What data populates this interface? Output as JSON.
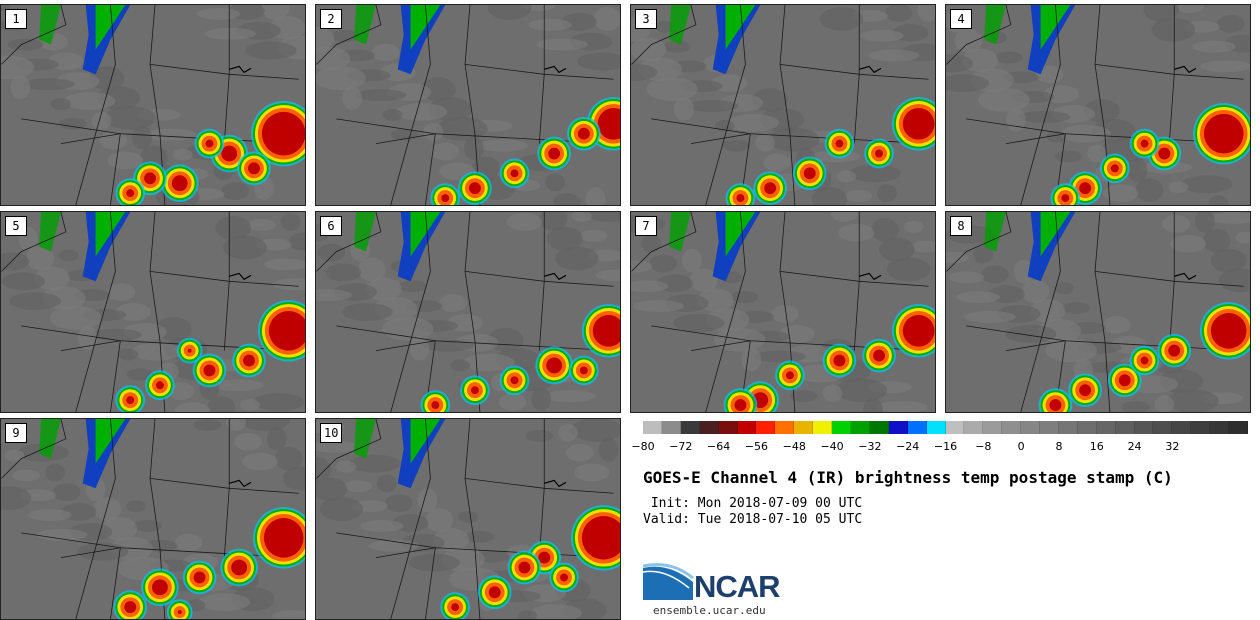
{
  "panels": [
    {
      "number": "1"
    },
    {
      "number": "2"
    },
    {
      "number": "3"
    },
    {
      "number": "4"
    },
    {
      "number": "5"
    },
    {
      "number": "6"
    },
    {
      "number": "7"
    },
    {
      "number": "8"
    },
    {
      "number": "9"
    },
    {
      "number": "10"
    }
  ],
  "colorbar": {
    "colors": [
      "#bdbdbd",
      "#8c8c8c",
      "#3a3a3a",
      "#4a1f1f",
      "#7a0d0d",
      "#c00000",
      "#ff2000",
      "#ff7000",
      "#e8b400",
      "#f0f000",
      "#00d200",
      "#00a000",
      "#007800",
      "#1010c8",
      "#0070ff",
      "#00e0ff",
      "#bfbfbf",
      "#ababab",
      "#9b9b9b",
      "#8f8f8f",
      "#868686",
      "#7e7e7e",
      "#767676",
      "#6e6e6e",
      "#666666",
      "#5e5e5e",
      "#565656",
      "#4e4e4e",
      "#464646",
      "#3e3e3e",
      "#363636",
      "#2e2e2e"
    ],
    "tick_labels": [
      "−80",
      "−72",
      "−64",
      "−56",
      "−48",
      "−40",
      "−32",
      "−24",
      "−16",
      "−8",
      "0",
      "8",
      "16",
      "24",
      "32"
    ]
  },
  "title": "GOES-E Channel 4 (IR) brightness temp postage stamp (C)",
  "init_text": " Init: Mon 2018-07-09 00 UTC",
  "valid_text": "Valid: Tue 2018-07-10 05 UTC",
  "logo_text": "NCAR",
  "site": "ensemble.ucar.edu"
}
